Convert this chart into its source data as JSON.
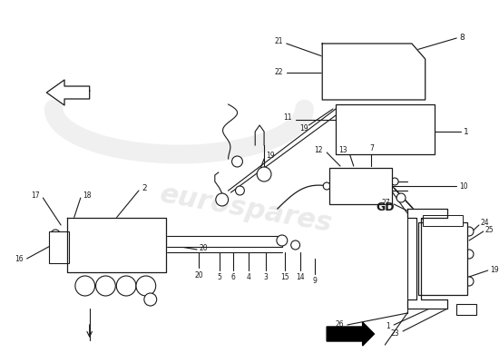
{
  "bg_color": "#ffffff",
  "line_color": "#1a1a1a",
  "label_color": "#1a1a1a",
  "watermark_text": "eurospares",
  "watermark_color": "#cccccc",
  "gd_label": "GD",
  "figsize": [
    5.5,
    4.0
  ],
  "dpi": 100
}
